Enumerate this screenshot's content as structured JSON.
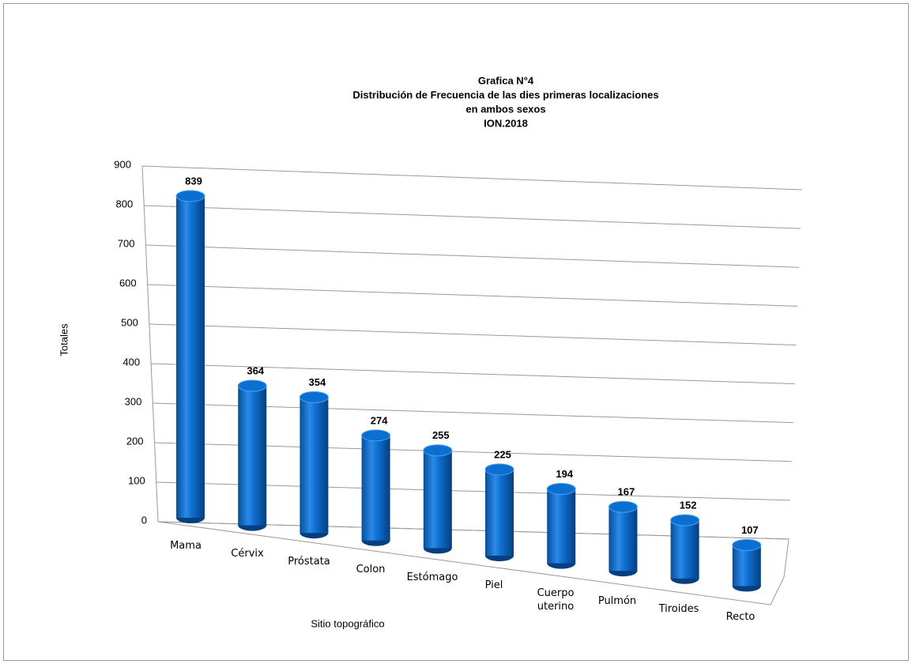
{
  "chart_data": {
    "type": "bar3d",
    "title": [
      "Grafica N°4",
      "Distribución de Frecuencia de las dies primeras localizaciones",
      "en ambos sexos",
      "ION.2018"
    ],
    "xlabel": "Sitio topográfico",
    "ylabel": "Totales",
    "categories": [
      "Mama",
      "Cérvix",
      "Próstata",
      "Colon",
      "Estómago",
      "Piel",
      "Cuerpo uterino",
      "Pulmón",
      "Tiroides",
      "Recto"
    ],
    "values": [
      839,
      364,
      354,
      274,
      255,
      225,
      194,
      167,
      152,
      107
    ],
    "color": "#0a6fd1",
    "ylim": [
      0,
      900
    ],
    "yticks": [
      0,
      100,
      200,
      300,
      400,
      500,
      600,
      700,
      800,
      900
    ],
    "grid": true
  }
}
